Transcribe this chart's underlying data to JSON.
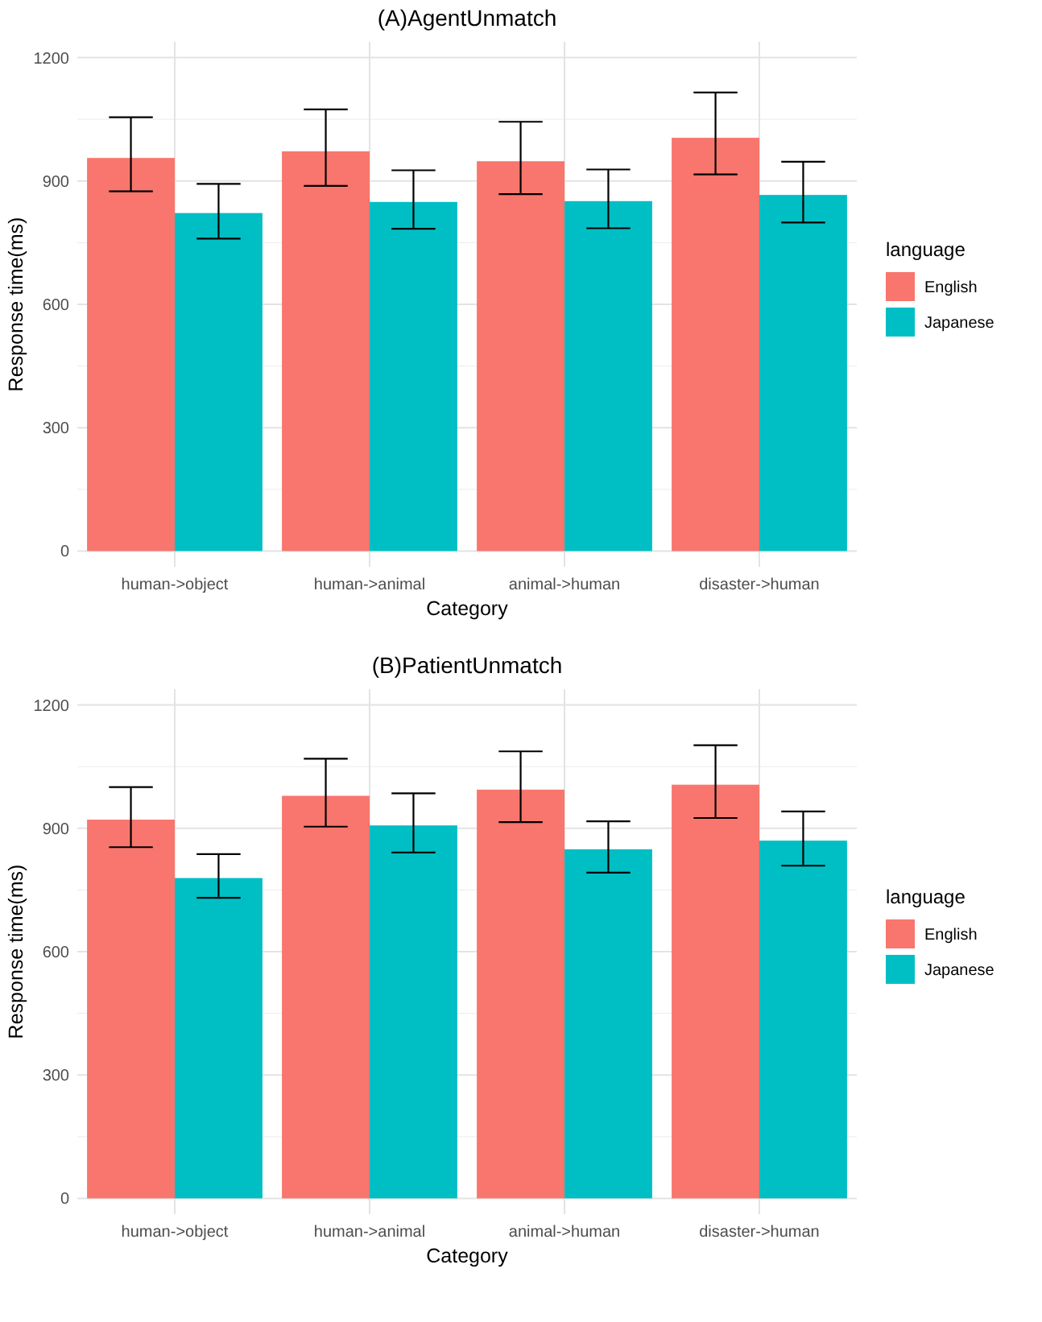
{
  "chart_data": [
    {
      "type": "bar",
      "title": "(A)AgentUnmatch",
      "xlabel": "Category",
      "ylabel": "Response time(ms)",
      "legend_title": "language",
      "categories": [
        "human->object",
        "human->animal",
        "animal->human",
        "disaster->human"
      ],
      "series": [
        {
          "name": "English",
          "color": "#f8766d",
          "values": [
            956,
            972,
            948,
            1005
          ],
          "errors": [
            [
              875,
              1055
            ],
            [
              888,
              1074
            ],
            [
              868,
              1044
            ],
            [
              916,
              1115
            ]
          ]
        },
        {
          "name": "Japanese",
          "color": "#00bfc4",
          "values": [
            822,
            849,
            851,
            866
          ],
          "errors": [
            [
              760,
              893
            ],
            [
              784,
              926
            ],
            [
              785,
              928
            ],
            [
              799,
              947
            ]
          ]
        }
      ],
      "ylim": [
        0,
        1200
      ],
      "yticks": [
        0,
        300,
        600,
        900,
        1200
      ],
      "grid": true,
      "legend": "right"
    },
    {
      "type": "bar",
      "title": "(B)PatientUnmatch",
      "xlabel": "Category",
      "ylabel": "Response time(ms)",
      "legend_title": "language",
      "categories": [
        "human->object",
        "human->animal",
        "animal->human",
        "disaster->human"
      ],
      "series": [
        {
          "name": "English",
          "color": "#f8766d",
          "values": [
            921,
            979,
            994,
            1006
          ],
          "errors": [
            [
              854,
              1000
            ],
            [
              904,
              1069
            ],
            [
              915,
              1087
            ],
            [
              925,
              1102
            ]
          ]
        },
        {
          "name": "Japanese",
          "color": "#00bfc4",
          "values": [
            779,
            907,
            849,
            870
          ],
          "errors": [
            [
              731,
              837
            ],
            [
              841,
              985
            ],
            [
              792,
              917
            ],
            [
              809,
              941
            ]
          ]
        }
      ],
      "ylim": [
        0,
        1200
      ],
      "yticks": [
        0,
        300,
        600,
        900,
        1200
      ],
      "grid": true,
      "legend": "right"
    }
  ]
}
